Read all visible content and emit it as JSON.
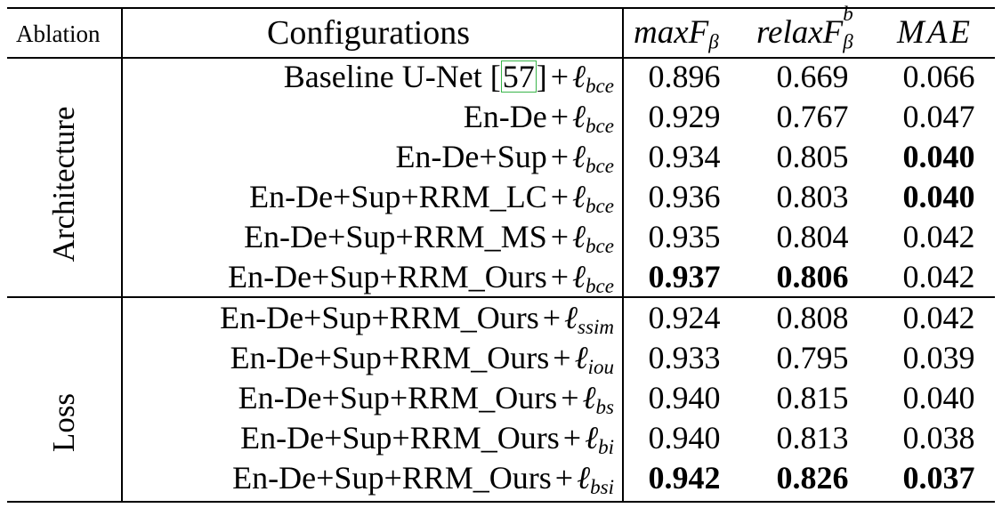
{
  "table": {
    "headers": {
      "ablation": "Ablation",
      "configurations": "Configurations",
      "maxF": {
        "base": "maxF",
        "sub": "β"
      },
      "relaxF": {
        "base": "relaxF",
        "sup": "b",
        "sub": "β"
      },
      "mae": "MAE"
    },
    "groups": [
      {
        "label": "Architecture"
      },
      {
        "label": "Loss"
      }
    ],
    "rows": [
      {
        "config": "Baseline U-Net [",
        "cite": "57",
        "config_after": "]",
        "plus": "+",
        "loss_symbol": "ℓ",
        "loss_sub": "bce",
        "maxF": "0.896",
        "relaxF": "0.669",
        "mae": "0.066",
        "bold": []
      },
      {
        "config": "En-De",
        "plus": "+",
        "loss_symbol": "ℓ",
        "loss_sub": "bce",
        "maxF": "0.929",
        "relaxF": "0.767",
        "mae": "0.047",
        "bold": []
      },
      {
        "config": "En-De+Sup",
        "plus": "+",
        "loss_symbol": "ℓ",
        "loss_sub": "bce",
        "maxF": "0.934",
        "relaxF": "0.805",
        "mae": "0.040",
        "bold": [
          "mae"
        ]
      },
      {
        "config": "En-De+Sup+RRM_LC",
        "plus": "+",
        "loss_symbol": "ℓ",
        "loss_sub": "bce",
        "maxF": "0.936",
        "relaxF": "0.803",
        "mae": "0.040",
        "bold": [
          "mae"
        ]
      },
      {
        "config": "En-De+Sup+RRM_MS",
        "plus": "+",
        "loss_symbol": "ℓ",
        "loss_sub": "bce",
        "maxF": "0.935",
        "relaxF": "0.804",
        "mae": "0.042",
        "bold": []
      },
      {
        "config": "En-De+Sup+RRM_Ours",
        "plus": "+",
        "loss_symbol": "ℓ",
        "loss_sub": "bce",
        "maxF": "0.937",
        "relaxF": "0.806",
        "mae": "0.042",
        "bold": [
          "maxF",
          "relaxF"
        ]
      },
      {
        "config": "En-De+Sup+RRM_Ours",
        "plus": "+",
        "loss_symbol": "ℓ",
        "loss_sub": "ssim",
        "maxF": "0.924",
        "relaxF": "0.808",
        "mae": "0.042",
        "bold": []
      },
      {
        "config": "En-De+Sup+RRM_Ours",
        "plus": "+",
        "loss_symbol": "ℓ",
        "loss_sub": "iou",
        "maxF": "0.933",
        "relaxF": "0.795",
        "mae": "0.039",
        "bold": []
      },
      {
        "config": "En-De+Sup+RRM_Ours",
        "plus": "+",
        "loss_symbol": "ℓ",
        "loss_sub": "bs",
        "maxF": "0.940",
        "relaxF": "0.815",
        "mae": "0.040",
        "bold": []
      },
      {
        "config": "En-De+Sup+RRM_Ours",
        "plus": "+",
        "loss_symbol": "ℓ",
        "loss_sub": "bi",
        "maxF": "0.940",
        "relaxF": "0.813",
        "mae": "0.038",
        "bold": []
      },
      {
        "config": "En-De+Sup+RRM_Ours",
        "plus": "+",
        "loss_symbol": "ℓ",
        "loss_sub": "bsi",
        "maxF": "0.942",
        "relaxF": "0.826",
        "mae": "0.037",
        "bold": [
          "maxF",
          "relaxF",
          "mae"
        ]
      }
    ]
  }
}
